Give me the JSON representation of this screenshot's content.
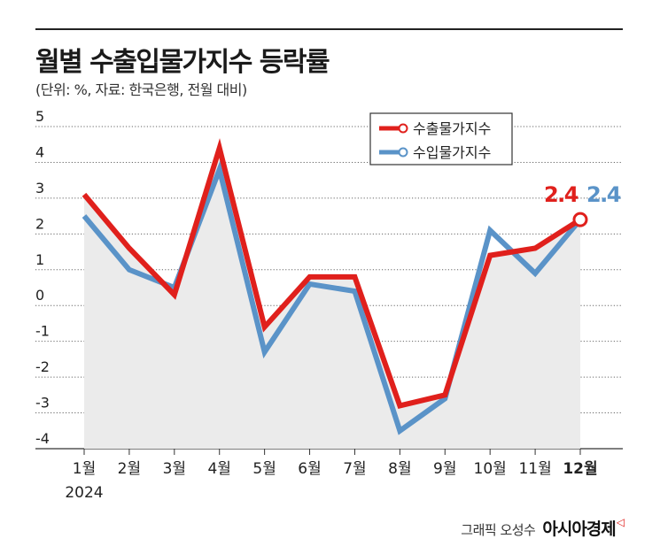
{
  "title": "월별 수출입물가지수 등락률",
  "subtitle": "(단위: %, 자료: 한국은행, 전월 대비)",
  "credit": {
    "author": "그래픽 오성수",
    "brand": "아시아경제",
    "brand_mark": "◁"
  },
  "colors": {
    "export": "#e0201c",
    "import": "#5a93c8",
    "area": "#ebebeb",
    "grid": "#555555",
    "text": "#222222"
  },
  "chart_data": {
    "type": "line",
    "categories": [
      "1월",
      "2월",
      "3월",
      "4월",
      "5월",
      "6월",
      "7월",
      "8월",
      "9월",
      "10월",
      "11월",
      "12월"
    ],
    "year_label": "2024",
    "ylim": [
      -4,
      5
    ],
    "yticks": [
      5,
      4,
      3,
      2,
      1,
      0,
      -1,
      -2,
      -3,
      -4
    ],
    "grid": true,
    "legend_position": "top-right",
    "series": [
      {
        "name": "수출물가지수",
        "color": "#e0201c",
        "values": [
          3.1,
          1.6,
          0.3,
          4.4,
          -0.6,
          0.8,
          0.8,
          -2.8,
          -2.5,
          1.4,
          1.6,
          2.4
        ]
      },
      {
        "name": "수입물가지수",
        "color": "#5a93c8",
        "values": [
          2.5,
          1.0,
          0.5,
          3.8,
          -1.3,
          0.6,
          0.4,
          -3.5,
          -2.6,
          2.1,
          0.9,
          2.4
        ]
      }
    ],
    "end_labels": [
      "2.4",
      "2.4"
    ]
  }
}
